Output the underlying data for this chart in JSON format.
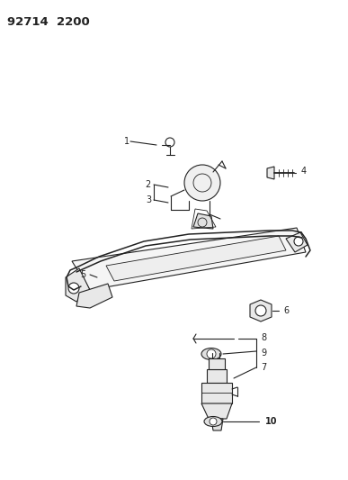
{
  "title": "92714 2200",
  "background_color": "#ffffff",
  "text_color": "#000000",
  "figsize": [
    3.87,
    5.33
  ],
  "dpi": 100
}
